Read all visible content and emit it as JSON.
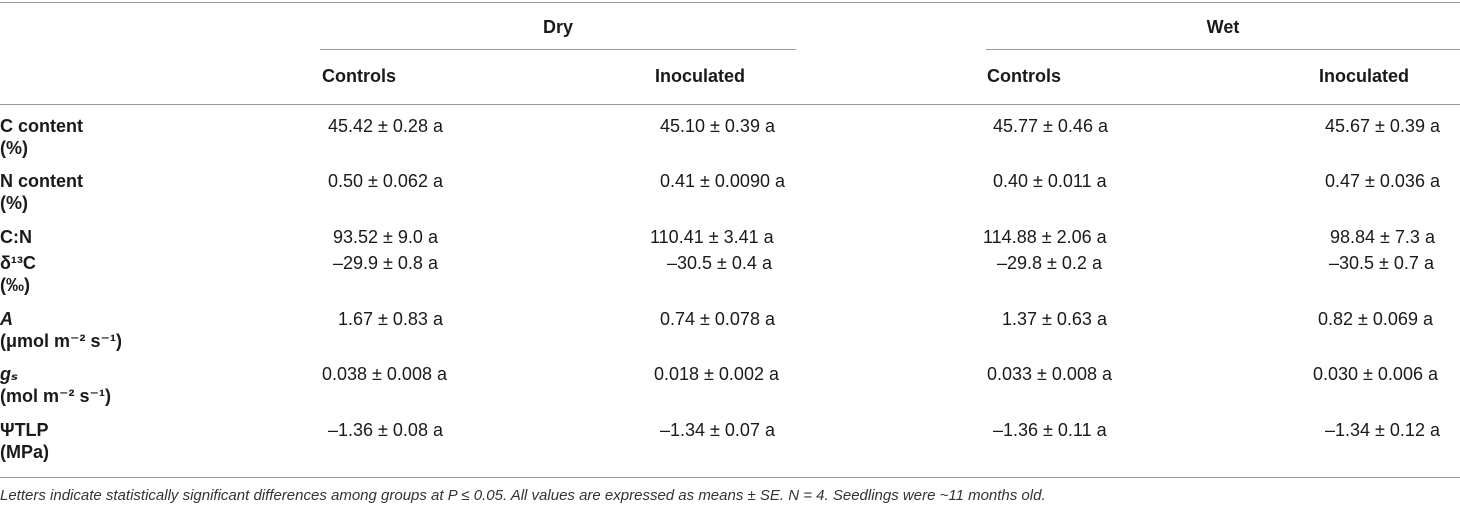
{
  "header": {
    "groups": [
      "Dry",
      "Wet"
    ],
    "subcolumns": [
      "Controls",
      "Inoculated",
      "Controls",
      "Inoculated"
    ]
  },
  "rows": [
    {
      "label_main": "C content",
      "label_unit": "(%)",
      "values": [
        "45.42 ± 0.28 a",
        "45.10 ± 0.39 a",
        "45.77 ± 0.46 a",
        "45.67 ± 0.39 a"
      ]
    },
    {
      "label_main": "N content",
      "label_unit": "(%)",
      "values": [
        "0.50 ± 0.062 a",
        "0.41 ± 0.0090 a",
        "0.40 ± 0.011 a",
        "0.47 ± 0.036 a"
      ]
    },
    {
      "label_main": "C:N",
      "label_unit": "",
      "values": [
        "93.52 ± 9.0 a",
        "110.41 ± 3.41 a",
        "114.88 ± 2.06 a",
        "98.84 ± 7.3 a"
      ]
    },
    {
      "label_main": "δ¹³C",
      "label_unit": "(‰)",
      "values": [
        "–29.9 ± 0.8 a",
        "–30.5 ± 0.4 a",
        "–29.8 ± 0.2 a",
        "–30.5 ± 0.7 a"
      ]
    },
    {
      "label_main": "A",
      "label_unit": "(μmol m⁻² s⁻¹)",
      "values": [
        "1.67 ± 0.83 a",
        "0.74 ± 0.078 a",
        "1.37 ± 0.63 a",
        "0.82 ± 0.069 a"
      ]
    },
    {
      "label_main": "gₛ",
      "label_unit": "(mol m⁻² s⁻¹)",
      "values": [
        "0.038 ± 0.008 a",
        "0.018 ± 0.002 a",
        "0.033 ± 0.008 a",
        "0.030 ± 0.006 a"
      ]
    },
    {
      "label_main": "ΨTLP",
      "label_unit": "(MPa)",
      "values": [
        "–1.36 ± 0.08 a",
        "–1.34 ± 0.07 a",
        "–1.36 ± 0.11 a",
        "–1.34 ± 0.12 a"
      ]
    }
  ],
  "footnote": "Letters indicate statistically significant differences among groups at P ≤ 0.05. All values are expressed as means ± SE. N = 4. Seedlings were ~11 months old."
}
